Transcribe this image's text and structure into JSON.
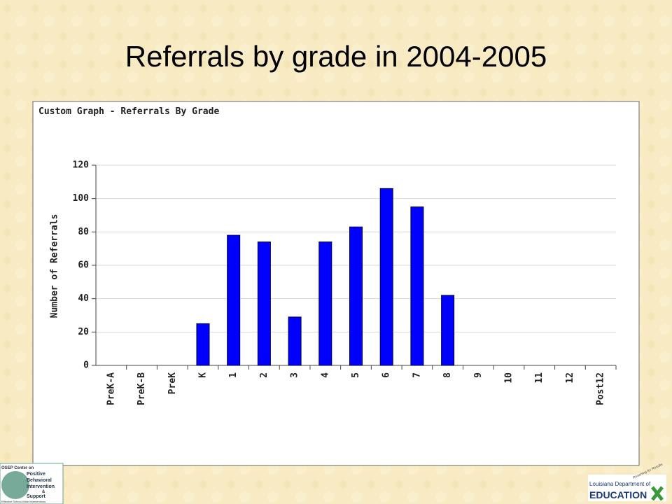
{
  "slide": {
    "title": "Referrals by grade in 2004-2005"
  },
  "chart_data": {
    "type": "bar",
    "title": "Custom Graph - Referrals By Grade",
    "y_label": "Number of Referrals",
    "categories": [
      "PreK-A",
      "PreK-B",
      "PreK",
      "K",
      "1",
      "2",
      "3",
      "4",
      "5",
      "6",
      "7",
      "8",
      "9",
      "10",
      "11",
      "12",
      "Post12"
    ],
    "values": [
      0,
      0,
      0,
      25,
      78,
      74,
      29,
      74,
      83,
      106,
      95,
      42,
      0,
      0,
      0,
      0,
      0
    ],
    "color": "#0000ff",
    "ylim": [
      0,
      120
    ],
    "yticks": [
      0,
      20,
      40,
      60,
      80,
      100,
      120
    ],
    "grid": true
  },
  "logos": {
    "left": {
      "line1": "OSEP Center on",
      "line2": "Positive",
      "line3": "Behavioral",
      "line4": "Intervention",
      "line5": "&",
      "line6": "Support",
      "line7": "Effective School-Wide Interventions"
    },
    "right": {
      "line1": "Louisiana Department of",
      "line2": "EDUCATION",
      "line3": "Reaching for Results"
    }
  }
}
